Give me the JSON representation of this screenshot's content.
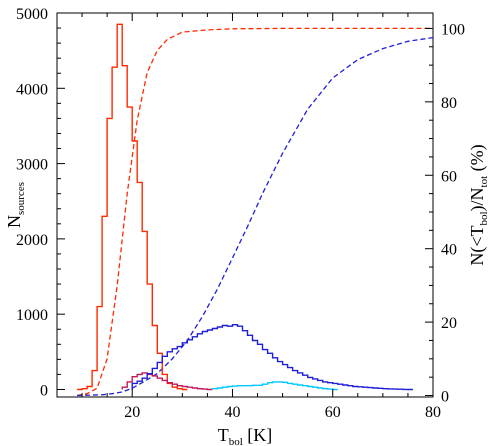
{
  "chart_data": {
    "type": "line",
    "title": "",
    "xlabel": {
      "main": "T",
      "sub": "bol",
      "rest": " [K]"
    },
    "ylabel_left": {
      "main": "N",
      "sub": "sources"
    },
    "ylabel_right": {
      "p1": "N(<T",
      "s1": "bol",
      "p2": ")/N",
      "s2": "tot",
      "p3": " (%)"
    },
    "xlim": [
      5,
      80
    ],
    "ylim_left": [
      -100,
      5000
    ],
    "ylim_right": [
      -0.4,
      104.2
    ],
    "x_ticks": [
      20,
      40,
      60,
      80
    ],
    "y_ticks_left": [
      0,
      1000,
      2000,
      3000,
      4000,
      5000
    ],
    "y_ticks_right": [
      0,
      20,
      40,
      60,
      80,
      100
    ],
    "bin_width": 1,
    "histograms": [
      {
        "axis": "left",
        "color": "#ff2a00",
        "x_start": 9,
        "values": [
          0,
          10,
          40,
          250,
          1100,
          2300,
          3600,
          4280,
          4850,
          4300,
          3750,
          3300,
          2750,
          2100,
          1400,
          850,
          480,
          200,
          80,
          30,
          10,
          0
        ]
      },
      {
        "axis": "left",
        "color": "#c2185b",
        "x_start": 18,
        "values": [
          30,
          100,
          170,
          200,
          220,
          200,
          180,
          150,
          120,
          90,
          70,
          50,
          40,
          30,
          20,
          10,
          5,
          0
        ]
      },
      {
        "axis": "left",
        "color": "#1f1fd8",
        "x_start": 20,
        "values": [
          80,
          110,
          150,
          210,
          280,
          360,
          440,
          500,
          540,
          570,
          620,
          660,
          700,
          740,
          770,
          790,
          810,
          830,
          850,
          840,
          860,
          840,
          780,
          720,
          650,
          600,
          530,
          480,
          420,
          370,
          330,
          290,
          250,
          220,
          190,
          160,
          140,
          120,
          100,
          90,
          80,
          70,
          60,
          50,
          40,
          35,
          30,
          25,
          20,
          15,
          10,
          8,
          5,
          3,
          1,
          0
        ]
      },
      {
        "axis": "left",
        "color": "#00c8ff",
        "x_start": 36,
        "values": [
          10,
          20,
          30,
          40,
          45,
          50,
          50,
          50,
          55,
          55,
          70,
          90,
          100,
          100,
          95,
          80,
          70,
          60,
          50,
          40,
          30,
          20,
          10,
          5,
          0
        ]
      }
    ],
    "cumulative": [
      {
        "axis": "right",
        "color": "#ff2a00",
        "x": [
          9,
          11,
          13,
          15,
          17,
          19,
          21,
          23,
          25,
          27,
          30,
          35,
          40,
          50,
          60,
          70,
          80
        ],
        "values": [
          0,
          0.5,
          2,
          10,
          30,
          55,
          75,
          88,
          94,
          97,
          99,
          99.6,
          99.9,
          100,
          100,
          100,
          100
        ]
      },
      {
        "axis": "right",
        "color": "#1f1fd8",
        "x": [
          9,
          14,
          16,
          18,
          20,
          22,
          25,
          28,
          31,
          34,
          37,
          40,
          43,
          46,
          50,
          55,
          60,
          65,
          70,
          75,
          80
        ],
        "values": [
          0,
          0.2,
          0.5,
          1,
          2,
          3.5,
          6,
          10,
          15,
          21.5,
          29,
          37.5,
          46,
          55,
          66,
          78,
          86.5,
          91.5,
          94.5,
          96.5,
          97.5
        ]
      }
    ],
    "grid": false,
    "legend": "none"
  }
}
